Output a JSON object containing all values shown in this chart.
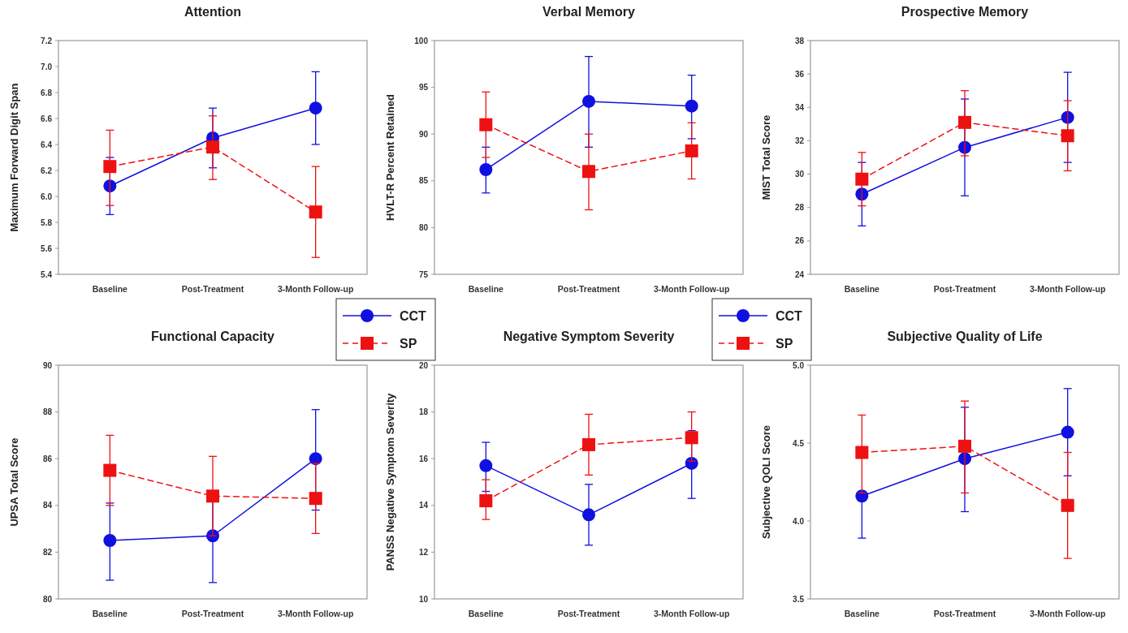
{
  "chart_data": [
    {
      "type": "line",
      "title": "Attention",
      "ylabel": "Maximum Forward Digit Span",
      "categories": [
        "Baseline",
        "Post-Treatment",
        "3-Month Follow-up"
      ],
      "ylim": [
        5.4,
        7.2
      ],
      "yticks": [
        5.4,
        5.6,
        5.8,
        {
          "value": 6.0,
          "label": "6.0"
        },
        6.2,
        6.4,
        6.6,
        6.8,
        {
          "value": 7.0,
          "label": "7.0"
        },
        7.2
      ],
      "grid": false,
      "legend": "bottom right",
      "series": [
        {
          "name": "CCT",
          "color": "#1010e0",
          "marker": "circle",
          "line_style": "solid",
          "values": [
            6.08,
            6.45,
            6.68
          ],
          "errors": [
            [
              5.86,
              6.3
            ],
            [
              6.22,
              6.68
            ],
            [
              6.4,
              6.96
            ]
          ]
        },
        {
          "name": "SP",
          "color": "#ee1111",
          "marker": "square",
          "line_style": "dashed",
          "values": [
            6.23,
            6.38,
            5.88
          ],
          "errors": [
            [
              5.93,
              6.51
            ],
            [
              6.13,
              6.62
            ],
            [
              5.53,
              6.23
            ]
          ]
        }
      ]
    },
    {
      "type": "line",
      "title": "Verbal Memory",
      "ylabel": "HVLT-R Percent Retained",
      "categories": [
        "Baseline",
        "Post-Treatment",
        "3-Month Follow-up"
      ],
      "ylim": [
        75,
        100
      ],
      "yticks": [
        75,
        80,
        85,
        90,
        95,
        100
      ],
      "grid": false,
      "legend": "bottom right",
      "series": [
        {
          "name": "CCT",
          "color": "#1010e0",
          "marker": "circle",
          "line_style": "solid",
          "values": [
            86.2,
            93.5,
            93.0
          ],
          "errors": [
            [
              83.7,
              88.6
            ],
            [
              88.6,
              98.3
            ],
            [
              89.5,
              96.3
            ]
          ]
        },
        {
          "name": "SP",
          "color": "#ee1111",
          "marker": "square",
          "line_style": "dashed",
          "values": [
            91.0,
            86.0,
            88.2
          ],
          "errors": [
            [
              87.5,
              94.5
            ],
            [
              81.9,
              90.0
            ],
            [
              85.2,
              91.2
            ]
          ]
        }
      ]
    },
    {
      "type": "line",
      "title": "Prospective Memory",
      "ylabel": "MIST Total Score",
      "categories": [
        "Baseline",
        "Post-Treatment",
        "3-Month Follow-up"
      ],
      "ylim": [
        24,
        38
      ],
      "yticks": [
        24,
        26,
        28,
        30,
        32,
        34,
        36,
        38
      ],
      "grid": false,
      "legend": false,
      "series": [
        {
          "color": "#1010e0",
          "marker": "circle",
          "line_style": "solid",
          "values": [
            28.8,
            31.6,
            33.4
          ],
          "errors": [
            [
              26.9,
              30.7
            ],
            [
              28.7,
              34.5
            ],
            [
              30.7,
              36.1
            ]
          ]
        },
        {
          "color": "#ee1111",
          "marker": "square",
          "line_style": "dashed",
          "values": [
            29.7,
            33.1,
            32.3
          ],
          "errors": [
            [
              28.1,
              31.3
            ],
            [
              31.1,
              35.0
            ],
            [
              30.2,
              34.4
            ]
          ]
        }
      ]
    },
    {
      "type": "line",
      "title": "Functional Capacity",
      "ylabel": "UPSA Total Score",
      "categories": [
        "Baseline",
        "Post-Treatment",
        "3-Month Follow-up"
      ],
      "ylim": [
        80,
        90
      ],
      "yticks": [
        80,
        82,
        84,
        86,
        88,
        90
      ],
      "grid": false,
      "legend": false,
      "series": [
        {
          "color": "#1010e0",
          "marker": "circle",
          "line_style": "solid",
          "values": [
            82.5,
            82.7,
            86.0
          ],
          "errors": [
            [
              80.8,
              84.1
            ],
            [
              80.7,
              84.6
            ],
            [
              83.8,
              88.1
            ]
          ]
        },
        {
          "color": "#ee1111",
          "marker": "square",
          "line_style": "dashed",
          "values": [
            85.5,
            84.4,
            84.3
          ],
          "errors": [
            [
              84.0,
              87.0
            ],
            [
              82.7,
              86.1
            ],
            [
              82.8,
              85.8
            ]
          ]
        }
      ]
    },
    {
      "type": "line",
      "title": "Negative Symptom Severity",
      "ylabel": "PANSS Negative Symptom Severity",
      "categories": [
        "Baseline",
        "Post-Treatment",
        "3-Month Follow-up"
      ],
      "ylim": [
        10,
        20
      ],
      "yticks": [
        10,
        12,
        14,
        16,
        18,
        20
      ],
      "grid": false,
      "legend": false,
      "series": [
        {
          "color": "#1010e0",
          "marker": "circle",
          "line_style": "solid",
          "values": [
            15.7,
            13.6,
            15.8
          ],
          "errors": [
            [
              14.6,
              16.7
            ],
            [
              12.3,
              14.9
            ],
            [
              14.3,
              17.2
            ]
          ]
        },
        {
          "color": "#ee1111",
          "marker": "square",
          "line_style": "dashed",
          "values": [
            14.2,
            16.6,
            16.9
          ],
          "errors": [
            [
              13.4,
              15.1
            ],
            [
              15.3,
              17.9
            ],
            [
              15.9,
              18.0
            ]
          ]
        }
      ]
    },
    {
      "type": "line",
      "title": "Subjective Quality of Life",
      "ylabel": "Subjective QOLI Score",
      "categories": [
        "Baseline",
        "Post-Treatment",
        "3-Month Follow-up"
      ],
      "ylim": [
        3.5,
        5.0
      ],
      "yticks": [
        3.5,
        {
          "value": 4.0,
          "label": "4.0"
        },
        4.5,
        {
          "value": 5.0,
          "label": "5.0"
        }
      ],
      "grid": false,
      "legend": false,
      "series": [
        {
          "color": "#1010e0",
          "marker": "circle",
          "line_style": "solid",
          "values": [
            4.16,
            4.4,
            4.57
          ],
          "errors": [
            [
              3.89,
              4.16
            ],
            [
              4.06,
              4.73
            ],
            [
              4.29,
              4.85
            ]
          ]
        },
        {
          "color": "#ee1111",
          "marker": "square",
          "line_style": "dashed",
          "values": [
            4.44,
            4.48,
            4.1
          ],
          "errors": [
            [
              4.18,
              4.68
            ],
            [
              4.18,
              4.77
            ],
            [
              3.76,
              4.44
            ]
          ]
        }
      ]
    }
  ]
}
